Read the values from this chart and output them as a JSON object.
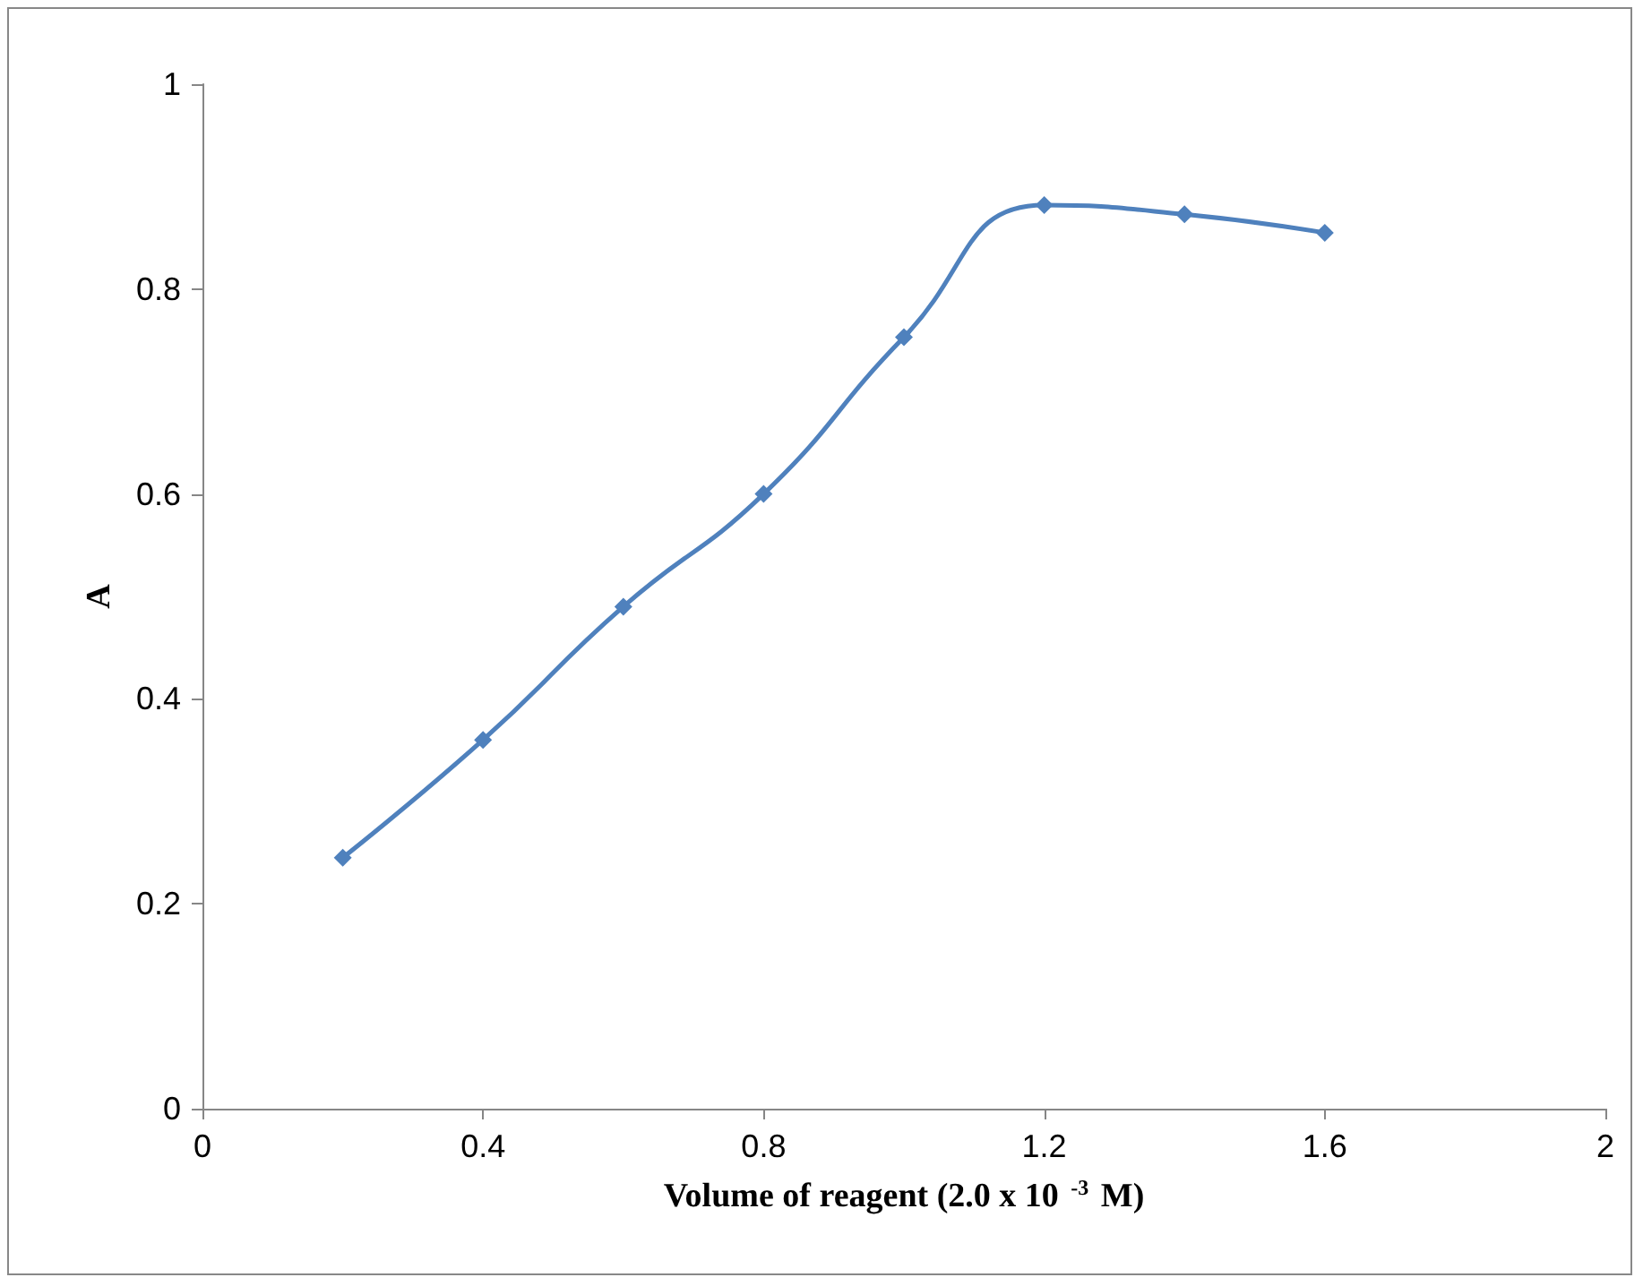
{
  "chart_data": {
    "type": "line",
    "xlabel": "Volume of reagent (2.0 x 10 $^{-3}$ M)",
    "ylabel": "A",
    "x": [
      0.2,
      0.4,
      0.6,
      0.8,
      1.0,
      1.2,
      1.4,
      1.6
    ],
    "series": [
      {
        "color": "#4f81bd",
        "values": [
          0.245,
          0.36,
          0.49,
          0.6,
          0.753,
          0.882,
          0.873,
          0.855
        ]
      }
    ],
    "xlim": [
      0,
      2
    ],
    "xticks": [
      0,
      0.4,
      0.8,
      1.2,
      1.6,
      2
    ],
    "ylim": [
      0,
      1
    ],
    "yticks": [
      0,
      0.2,
      0.4,
      0.6,
      0.8,
      1
    ],
    "marker": "diamond",
    "line_style": "solid"
  }
}
